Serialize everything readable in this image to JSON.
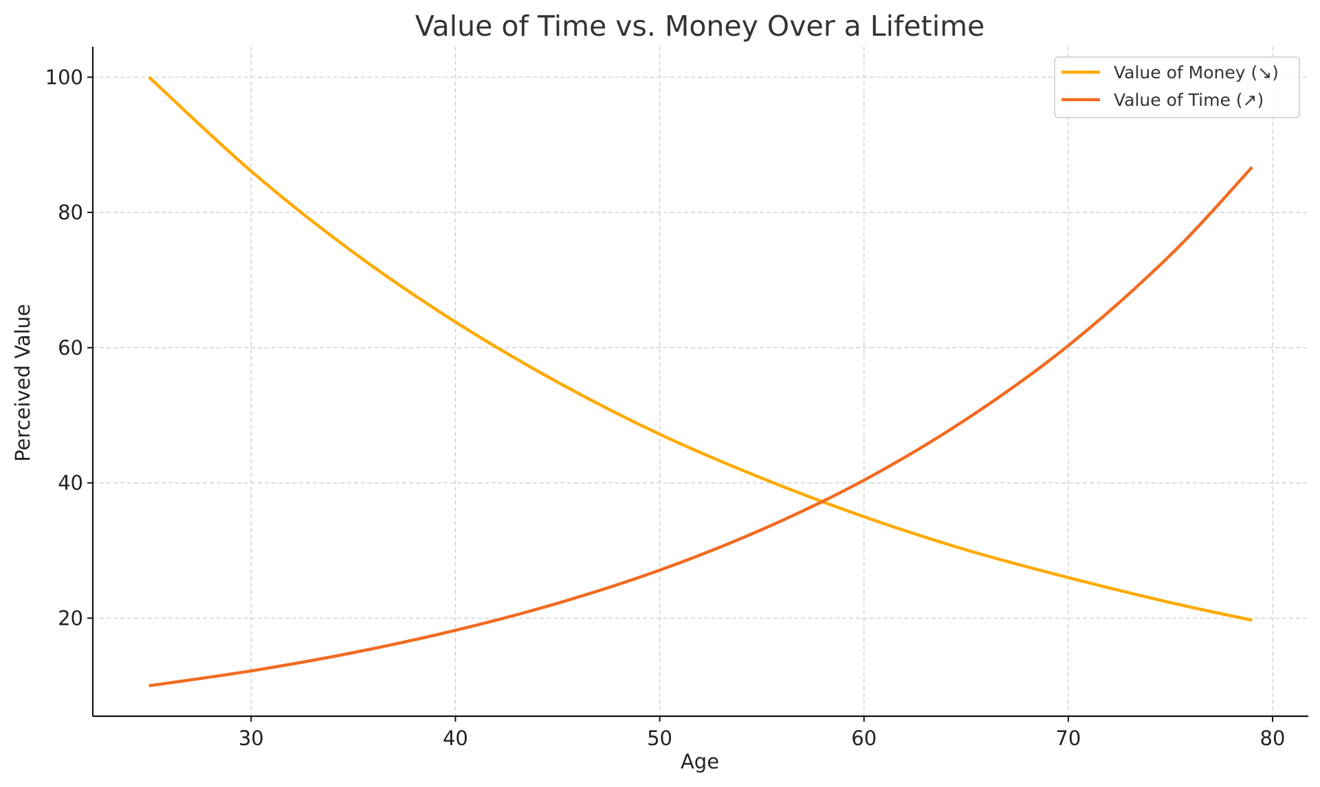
{
  "chart_data": {
    "type": "line",
    "title": "Value of Time vs. Money Over a Lifetime",
    "xlabel": "Age",
    "ylabel": "Perceived Value",
    "xlim": [
      22.25,
      81.75
    ],
    "ylim": [
      5.5,
      104.5
    ],
    "xticks": [
      30,
      40,
      50,
      60,
      70,
      80
    ],
    "yticks": [
      20,
      40,
      60,
      80,
      100
    ],
    "grid": true,
    "legend_position": "top-right",
    "series": [
      {
        "name": "Value of Money (↘)",
        "color": "#FFAA00",
        "x": [
          25,
          30,
          35,
          40,
          45,
          50,
          55,
          60,
          65,
          70,
          75,
          79
        ],
        "y": [
          100,
          86.1,
          74.1,
          63.8,
          54.9,
          47.2,
          40.7,
          35.0,
          30.1,
          26.0,
          22.3,
          19.7
        ]
      },
      {
        "name": "Value of Time (↗)",
        "color": "#F26B21",
        "x": [
          25,
          30,
          35,
          40,
          45,
          50,
          55,
          60,
          65,
          70,
          75,
          79
        ],
        "y": [
          10,
          12.2,
          14.9,
          18.2,
          22.2,
          27.1,
          33.1,
          40.4,
          49.4,
          60.3,
          73.7,
          86.7
        ]
      }
    ]
  }
}
